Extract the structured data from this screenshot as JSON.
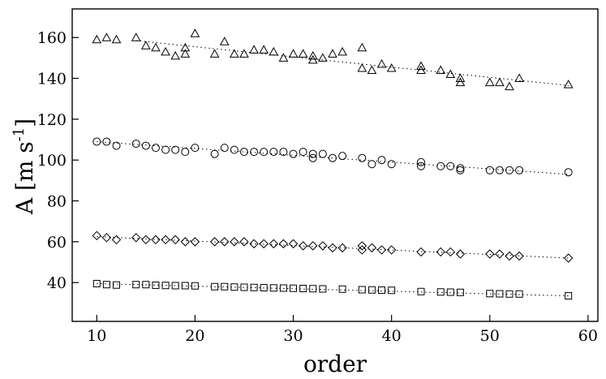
{
  "chart_data": {
    "type": "scatter",
    "title": "",
    "xlabel": "order",
    "ylabel": "A [m s-1]",
    "ylabel_parts": {
      "main": "A [m s",
      "sup": "-1",
      "close": "]"
    },
    "xlim": [
      7.5,
      61
    ],
    "ylim": [
      21,
      174
    ],
    "xticks": [
      10,
      20,
      30,
      40,
      50,
      60
    ],
    "yticks": [
      40,
      60,
      80,
      100,
      120,
      140,
      160
    ],
    "grid": false,
    "legend": "none",
    "series": [
      {
        "marker": "triangle",
        "x": [
          10,
          11,
          12,
          14,
          15,
          16,
          17,
          18,
          19,
          19,
          20,
          22,
          23,
          24,
          25,
          26,
          27,
          28,
          29,
          30,
          31,
          32,
          32,
          33,
          34,
          35,
          37,
          37,
          38,
          39,
          40,
          43,
          43,
          45,
          46,
          47,
          47,
          50,
          51,
          52,
          53,
          58
        ],
        "y": [
          159,
          160,
          159,
          160,
          156,
          155,
          153,
          151,
          155,
          152,
          162,
          152,
          158,
          152,
          152,
          154,
          154,
          153,
          150,
          152,
          152,
          151,
          149,
          150,
          152,
          153,
          155,
          145,
          144,
          147,
          145,
          146,
          144,
          144,
          142,
          140,
          138,
          138,
          138,
          136,
          140,
          137
        ],
        "trend": [
          [
            14,
            158.5
          ],
          [
            58,
            136.5
          ]
        ]
      },
      {
        "marker": "circle",
        "x": [
          10,
          11,
          12,
          14,
          15,
          16,
          17,
          18,
          19,
          20,
          22,
          23,
          24,
          25,
          26,
          27,
          28,
          29,
          30,
          31,
          32,
          32,
          33,
          34,
          35,
          37,
          38,
          39,
          40,
          43,
          43,
          45,
          46,
          47,
          47,
          50,
          51,
          52,
          53,
          58
        ],
        "y": [
          109,
          109,
          107,
          108,
          107,
          106,
          105,
          105,
          104,
          106,
          103,
          106,
          105,
          104,
          104,
          104,
          104,
          104,
          103,
          104,
          101,
          103,
          103,
          101,
          102,
          101,
          98,
          100,
          98,
          99,
          97,
          97,
          97,
          96,
          95,
          95,
          95,
          95,
          95,
          94
        ],
        "trend": [
          [
            10,
            109
          ],
          [
            58,
            93
          ]
        ]
      },
      {
        "marker": "diamond",
        "x": [
          10,
          11,
          12,
          14,
          15,
          16,
          17,
          18,
          19,
          20,
          22,
          23,
          24,
          25,
          26,
          27,
          28,
          29,
          30,
          31,
          32,
          33,
          34,
          35,
          37,
          37,
          38,
          39,
          40,
          43,
          45,
          46,
          47,
          50,
          51,
          52,
          53,
          58
        ],
        "y": [
          63,
          62,
          61,
          62,
          61,
          61,
          61,
          61,
          60,
          60,
          60,
          60,
          60,
          60,
          59,
          59,
          59,
          59,
          59,
          58,
          58,
          58,
          57,
          57,
          58,
          56,
          57,
          56,
          56,
          55,
          55,
          55,
          54,
          54,
          54,
          53,
          53,
          52
        ],
        "trend": [
          [
            10,
            62.5
          ],
          [
            58,
            52
          ]
        ]
      },
      {
        "marker": "square",
        "x": [
          10,
          11,
          12,
          14,
          15,
          16,
          17,
          18,
          19,
          20,
          22,
          23,
          24,
          25,
          26,
          27,
          28,
          29,
          30,
          31,
          32,
          33,
          35,
          37,
          38,
          39,
          40,
          43,
          45,
          46,
          47,
          50,
          51,
          52,
          53,
          58
        ],
        "y": [
          39.5,
          39,
          38.8,
          39,
          39,
          38.7,
          38.6,
          38.5,
          38.5,
          38.4,
          38,
          38,
          37.8,
          37.7,
          37.6,
          37.5,
          37.4,
          37.3,
          37.2,
          37.1,
          37,
          36.9,
          36.8,
          36.5,
          36.4,
          36.3,
          36.2,
          35.6,
          35.4,
          35.3,
          35.2,
          34.6,
          34.5,
          34.4,
          34.4,
          33.5
        ],
        "trend": [
          [
            10,
            39.5
          ],
          [
            58,
            33.5
          ]
        ]
      }
    ]
  }
}
